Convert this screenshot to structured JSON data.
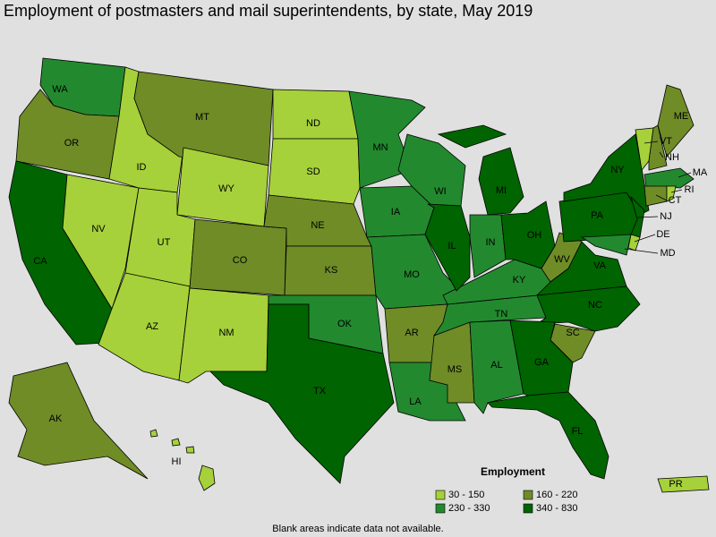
{
  "title": "Employment of postmasters and mail superintendents, by state, May 2019",
  "legend": {
    "title": "Employment",
    "bins": [
      {
        "label": "30 - 150",
        "color": "#a6d13a"
      },
      {
        "label": "160 - 220",
        "color": "#6f8c27"
      },
      {
        "label": "230 - 330",
        "color": "#23892f"
      },
      {
        "label": "340 - 830",
        "color": "#006400"
      }
    ]
  },
  "states": [
    {
      "abbr": "WA",
      "bin": 2
    },
    {
      "abbr": "OR",
      "bin": 1
    },
    {
      "abbr": "CA",
      "bin": 3
    },
    {
      "abbr": "NV",
      "bin": 0
    },
    {
      "abbr": "ID",
      "bin": 0
    },
    {
      "abbr": "MT",
      "bin": 1
    },
    {
      "abbr": "WY",
      "bin": 0
    },
    {
      "abbr": "UT",
      "bin": 0
    },
    {
      "abbr": "AZ",
      "bin": 0
    },
    {
      "abbr": "CO",
      "bin": 1
    },
    {
      "abbr": "NM",
      "bin": 0
    },
    {
      "abbr": "ND",
      "bin": 0
    },
    {
      "abbr": "SD",
      "bin": 0
    },
    {
      "abbr": "NE",
      "bin": 1
    },
    {
      "abbr": "KS",
      "bin": 1
    },
    {
      "abbr": "OK",
      "bin": 2
    },
    {
      "abbr": "TX",
      "bin": 3
    },
    {
      "abbr": "MN",
      "bin": 2
    },
    {
      "abbr": "IA",
      "bin": 2
    },
    {
      "abbr": "MO",
      "bin": 2
    },
    {
      "abbr": "AR",
      "bin": 1
    },
    {
      "abbr": "LA",
      "bin": 2
    },
    {
      "abbr": "MS",
      "bin": 1
    },
    {
      "abbr": "AL",
      "bin": 2
    },
    {
      "abbr": "TN",
      "bin": 2
    },
    {
      "abbr": "KY",
      "bin": 2
    },
    {
      "abbr": "WI",
      "bin": 2
    },
    {
      "abbr": "IL",
      "bin": 3
    },
    {
      "abbr": "IN",
      "bin": 2
    },
    {
      "abbr": "MI",
      "bin": 3
    },
    {
      "abbr": "OH",
      "bin": 3
    },
    {
      "abbr": "WV",
      "bin": 1
    },
    {
      "abbr": "VA",
      "bin": 3
    },
    {
      "abbr": "NC",
      "bin": 3
    },
    {
      "abbr": "SC",
      "bin": 1
    },
    {
      "abbr": "GA",
      "bin": 3
    },
    {
      "abbr": "FL",
      "bin": 3
    },
    {
      "abbr": "PA",
      "bin": 3
    },
    {
      "abbr": "NY",
      "bin": 3
    },
    {
      "abbr": "NJ",
      "bin": 3
    },
    {
      "abbr": "MD",
      "bin": 2
    },
    {
      "abbr": "DE",
      "bin": 0
    },
    {
      "abbr": "VT",
      "bin": 0
    },
    {
      "abbr": "NH",
      "bin": 1
    },
    {
      "abbr": "ME",
      "bin": 1
    },
    {
      "abbr": "MA",
      "bin": 2
    },
    {
      "abbr": "CT",
      "bin": 1
    },
    {
      "abbr": "RI",
      "bin": 0
    },
    {
      "abbr": "AK",
      "bin": 1
    },
    {
      "abbr": "HI",
      "bin": 0
    },
    {
      "abbr": "PR",
      "bin": 0
    }
  ],
  "footnote": "Blank areas indicate data not available."
}
